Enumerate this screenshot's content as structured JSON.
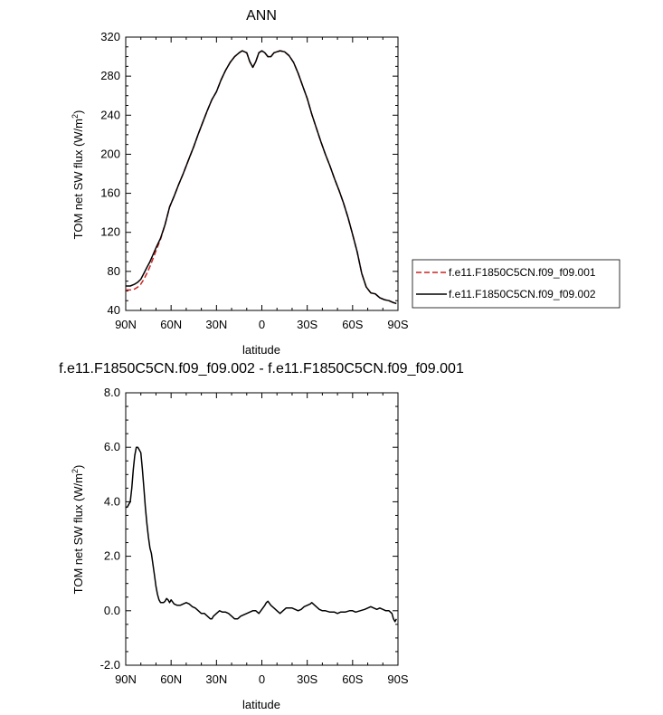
{
  "chart_data": [
    {
      "type": "line",
      "title": "ANN",
      "xlabel": "latitude",
      "ylabel": "TOM net SW flux (W/m",
      "ylabel_sup": "2",
      "ylabel_end": ")",
      "xlim": [
        90,
        -90
      ],
      "ylim": [
        40,
        320
      ],
      "xticks": [
        90,
        60,
        30,
        0,
        -30,
        -60,
        -90
      ],
      "xtick_labels": [
        "90N",
        "60N",
        "30N",
        "0",
        "30S",
        "60S",
        "90S"
      ],
      "yticks": [
        40,
        80,
        120,
        160,
        200,
        240,
        280,
        320
      ],
      "ytick_labels": [
        "40",
        "80",
        "120",
        "160",
        "200",
        "240",
        "280",
        "320"
      ],
      "legend_position": "right",
      "series": [
        {
          "name": "f.e11.F1850C5CN.f09_f09.001",
          "color": "#cc2222",
          "dash": "dashed",
          "x": [
            90,
            87,
            84,
            82,
            80,
            78,
            76,
            74,
            72,
            70,
            67,
            64,
            61,
            58,
            55,
            52,
            48,
            45,
            42,
            39,
            36,
            33,
            30,
            27,
            24,
            21,
            18,
            15,
            13,
            10,
            8,
            6,
            4,
            2,
            0,
            -2,
            -4,
            -6,
            -8,
            -10,
            -12,
            -15,
            -18,
            -21,
            -24,
            -27,
            -30,
            -33,
            -36,
            -39,
            -42,
            -45,
            -48,
            -51,
            -54,
            -57,
            -60,
            -63,
            -66,
            -69,
            -72,
            -75,
            -78,
            -81,
            -84,
            -87,
            -89
          ],
          "y": [
            61,
            61,
            62,
            64,
            67,
            72,
            78,
            85,
            93,
            101,
            113,
            128,
            146,
            157,
            169,
            180,
            196,
            208,
            221,
            233,
            245,
            256,
            264,
            276,
            286,
            294,
            300,
            304,
            306,
            304,
            295,
            289,
            295,
            304,
            306,
            304,
            300,
            300,
            304,
            305,
            306,
            305,
            301,
            294,
            283,
            270,
            257,
            241,
            227,
            213,
            200,
            188,
            175,
            163,
            150,
            135,
            118,
            100,
            78,
            64,
            58,
            57,
            53,
            51,
            50,
            48,
            48
          ]
        },
        {
          "name": "f.e11.F1850C5CN.f09_f09.002",
          "color": "#000000",
          "dash": "solid",
          "x": [
            90,
            87,
            84,
            82,
            80,
            78,
            76,
            74,
            72,
            70,
            67,
            64,
            61,
            58,
            55,
            52,
            48,
            45,
            42,
            39,
            36,
            33,
            30,
            27,
            24,
            21,
            18,
            15,
            13,
            10,
            8,
            6,
            4,
            2,
            0,
            -2,
            -4,
            -6,
            -8,
            -10,
            -12,
            -15,
            -18,
            -21,
            -24,
            -27,
            -30,
            -33,
            -36,
            -39,
            -42,
            -45,
            -48,
            -51,
            -54,
            -57,
            -60,
            -63,
            -66,
            -69,
            -72,
            -75,
            -78,
            -81,
            -84,
            -87,
            -89
          ],
          "y": [
            65,
            65,
            67,
            69,
            72,
            78,
            84,
            90,
            97,
            104,
            114,
            128,
            146,
            157,
            169,
            180,
            196,
            208,
            221,
            233,
            245,
            256,
            264,
            276,
            286,
            294,
            300,
            304,
            306,
            304,
            295,
            289,
            295,
            304,
            306,
            304,
            300,
            300,
            304,
            305,
            306,
            305,
            301,
            294,
            283,
            270,
            257,
            241,
            227,
            213,
            200,
            188,
            175,
            163,
            150,
            135,
            118,
            100,
            78,
            64,
            58,
            57,
            53,
            51,
            50,
            48,
            47
          ]
        }
      ]
    },
    {
      "type": "line",
      "title": "f.e11.F1850C5CN.f09_f09.002 - f.e11.F1850C5CN.f09_f09.001",
      "xlabel": "latitude",
      "ylabel": "TOM net SW flux (W/m",
      "ylabel_sup": "2",
      "ylabel_end": ")",
      "xlim": [
        90,
        -90
      ],
      "ylim": [
        -2.0,
        8.0
      ],
      "xticks": [
        90,
        60,
        30,
        0,
        -30,
        -60,
        -90
      ],
      "xtick_labels": [
        "90N",
        "60N",
        "30N",
        "0",
        "30S",
        "60S",
        "90S"
      ],
      "yticks": [
        -2.0,
        0.0,
        2.0,
        4.0,
        6.0,
        8.0
      ],
      "ytick_labels": [
        "-2.0",
        "0.0",
        "2.0",
        "4.0",
        "6.0",
        "8.0"
      ],
      "series": [
        {
          "color": "#000000",
          "dash": "solid",
          "x": [
            90,
            89,
            88,
            87,
            86,
            85,
            84,
            83,
            82,
            81,
            80,
            79,
            78,
            77,
            76,
            75,
            74,
            73,
            72,
            71,
            70,
            69,
            68,
            67,
            66,
            65,
            64,
            63,
            62,
            61,
            60,
            58,
            56,
            54,
            52,
            50,
            48,
            46,
            44,
            42,
            40,
            38,
            36,
            34,
            33,
            32,
            30,
            28,
            26,
            24,
            22,
            20,
            18,
            16,
            15,
            14,
            12,
            10,
            8,
            6,
            4,
            2,
            0,
            -2,
            -3,
            -4,
            -6,
            -8,
            -10,
            -12,
            -14,
            -15,
            -16,
            -18,
            -20,
            -22,
            -24,
            -26,
            -28,
            -30,
            -32,
            -33,
            -35,
            -38,
            -40,
            -42,
            -45,
            -48,
            -50,
            -52,
            -55,
            -58,
            -60,
            -62,
            -65,
            -68,
            -70,
            -72,
            -74,
            -76,
            -78,
            -80,
            -82,
            -84,
            -86,
            -87,
            -88,
            -89
          ],
          "y": [
            3.8,
            3.8,
            3.9,
            4.0,
            4.5,
            5.2,
            5.7,
            6.0,
            6.0,
            5.9,
            5.8,
            5.2,
            4.5,
            3.8,
            3.2,
            2.7,
            2.3,
            2.1,
            1.7,
            1.3,
            0.9,
            0.6,
            0.4,
            0.3,
            0.3,
            0.3,
            0.35,
            0.45,
            0.4,
            0.3,
            0.4,
            0.25,
            0.2,
            0.2,
            0.25,
            0.3,
            0.25,
            0.15,
            0.1,
            0.0,
            -0.1,
            -0.1,
            -0.2,
            -0.3,
            -0.3,
            -0.2,
            -0.1,
            0.0,
            -0.05,
            -0.05,
            -0.1,
            -0.2,
            -0.3,
            -0.3,
            -0.25,
            -0.2,
            -0.15,
            -0.1,
            -0.05,
            0.0,
            0.0,
            -0.1,
            0.05,
            0.2,
            0.3,
            0.35,
            0.2,
            0.1,
            0.0,
            -0.1,
            0.0,
            0.05,
            0.1,
            0.1,
            0.1,
            0.05,
            0.0,
            0.05,
            0.15,
            0.2,
            0.25,
            0.3,
            0.2,
            0.05,
            0.0,
            0.0,
            -0.05,
            -0.05,
            -0.1,
            -0.05,
            -0.05,
            0.0,
            0.0,
            -0.05,
            0.0,
            0.05,
            0.1,
            0.15,
            0.1,
            0.05,
            0.1,
            0.05,
            0.0,
            0.0,
            -0.1,
            -0.3,
            -0.4,
            -0.3
          ]
        }
      ]
    }
  ]
}
